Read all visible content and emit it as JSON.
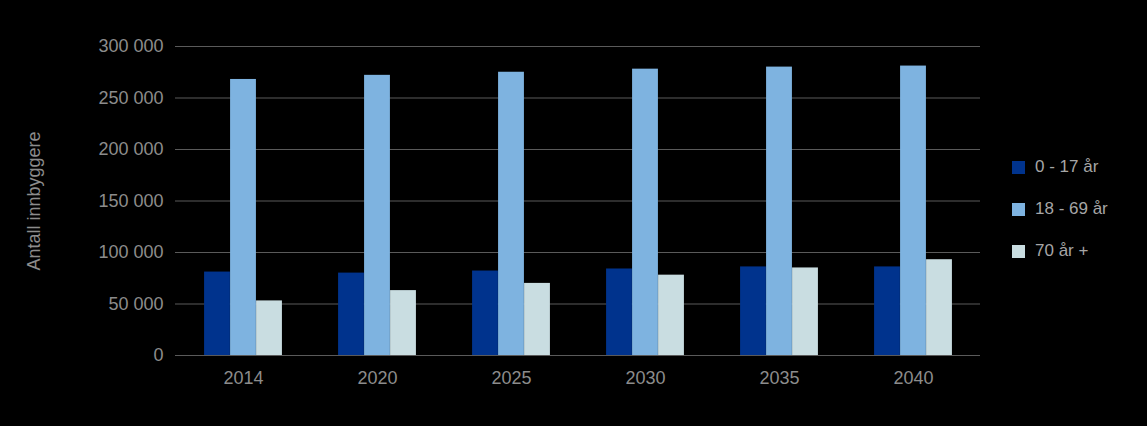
{
  "chart_data": {
    "type": "bar",
    "y_label": "Antall innbyggere",
    "categories": [
      "2014",
      "2020",
      "2025",
      "2030",
      "2035",
      "2040"
    ],
    "series": [
      {
        "name": "0 - 17 år",
        "color": "#00338d",
        "values": [
          81000,
          80000,
          82000,
          84000,
          86000,
          86000
        ]
      },
      {
        "name": "18 - 69 år",
        "color": "#7eb3e0",
        "values": [
          268000,
          272000,
          275000,
          278000,
          280000,
          281000
        ]
      },
      {
        "name": "70 år +",
        "color": "#c9dde1",
        "values": [
          53000,
          63000,
          70000,
          78000,
          85000,
          93000
        ]
      }
    ],
    "ylim": [
      0,
      300000
    ],
    "yticks": [
      0,
      {
        "value": 50000,
        "label": "50 000"
      },
      {
        "value": 100000,
        "label": "100 000"
      },
      {
        "value": 150000,
        "label": "150 000"
      },
      {
        "value": 200000,
        "label": "200 000"
      },
      {
        "value": 250000,
        "label": "250 000"
      },
      {
        "value": 300000,
        "label": "300 000"
      }
    ],
    "grid": true,
    "legend": "right"
  }
}
